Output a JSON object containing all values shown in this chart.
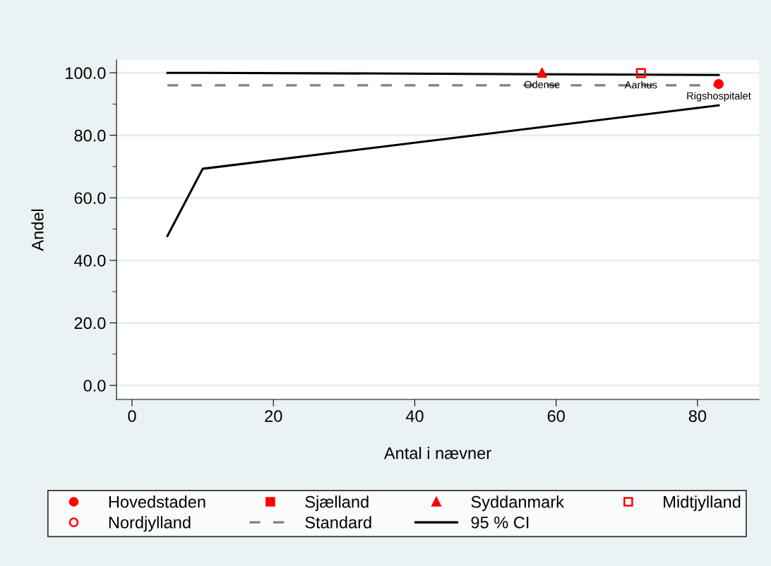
{
  "chart_data": {
    "type": "scatter",
    "xlabel": "Antal i nævner",
    "ylabel": "Andel",
    "xlim": [
      -2.2,
      88.7
    ],
    "ylim": [
      -4.5,
      104.1
    ],
    "xticks": [
      0,
      20,
      40,
      60,
      80
    ],
    "yticks": [
      {
        "value": 0,
        "label": "0.0"
      },
      {
        "value": 20,
        "label": "20.0"
      },
      {
        "value": 40,
        "label": "40.0"
      },
      {
        "value": 60,
        "label": "60.0"
      },
      {
        "value": 80,
        "label": "80.0"
      },
      {
        "value": 100,
        "label": "100.0"
      }
    ],
    "grid": "y",
    "legend": "bottom",
    "series": [
      {
        "name": "Hovedstaden",
        "marker": "circle",
        "color": "#ff0000",
        "x": [
          83
        ],
        "values": [
          96.4
        ]
      },
      {
        "name": "Sjælland",
        "marker": "square",
        "color": "#ff0000"
      },
      {
        "name": "Syddanmark",
        "marker": "triangle",
        "color": "#ff0000",
        "x": [
          58
        ],
        "values": [
          100
        ]
      },
      {
        "name": "Midtjylland",
        "marker": "square-open",
        "color": "#ff0000",
        "x": [
          72
        ],
        "values": [
          99.9
        ]
      },
      {
        "name": "Nordjylland",
        "marker": "circle-open",
        "color": "#ff0000"
      },
      {
        "name": "Standard",
        "type": "line",
        "line_style": "dashed",
        "color": "#808080",
        "x": [
          5,
          83
        ],
        "values": [
          96.0,
          96.0
        ]
      },
      {
        "name": "95 % CI",
        "type": "line",
        "line_style": "solid",
        "color": "#000000",
        "x": [
          5,
          10,
          83
        ],
        "values": [
          100,
          100,
          99.3
        ]
      },
      {
        "type": "line",
        "line_style": "solid",
        "color": "#000000",
        "x": [
          5,
          10,
          83
        ],
        "values": [
          47.8,
          69.3,
          89.6
        ]
      }
    ],
    "annotations": [
      {
        "text": "Odense",
        "x": 58,
        "y": 100
      },
      {
        "text": "Aarhus",
        "x": 72,
        "y": 99.9
      },
      {
        "text": "Rigshospitalet",
        "x": 83,
        "y": 96.4
      }
    ]
  }
}
